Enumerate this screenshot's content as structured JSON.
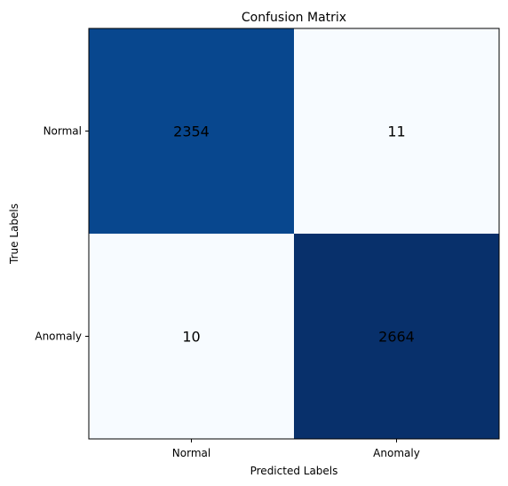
{
  "chart_data": {
    "type": "heatmap",
    "title": "Confusion Matrix",
    "xlabel": "Predicted Labels",
    "ylabel": "True Labels",
    "x_categories": [
      "Normal",
      "Anomaly"
    ],
    "y_categories": [
      "Normal",
      "Anomaly"
    ],
    "values": [
      [
        2354,
        11
      ],
      [
        10,
        2664
      ]
    ],
    "colormap": "Blues",
    "colors": {
      "low": "#f7fbff",
      "high": "#08306b",
      "mid_high": "#084e98",
      "text": "#000000"
    },
    "grid": false
  }
}
